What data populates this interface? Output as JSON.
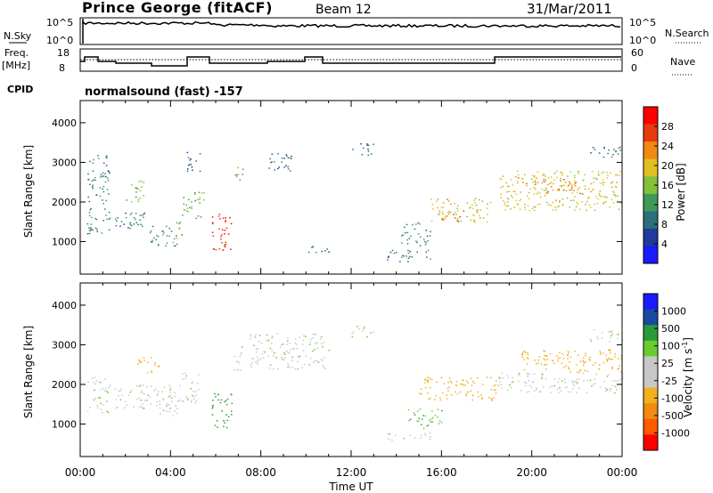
{
  "header": {
    "station": "Prince George (fitACF)",
    "beam": "Beam 12",
    "date": "31/Mar/2011"
  },
  "top_panels": {
    "nsky_label": "N.Sky",
    "nsky_ticks": [
      "10^5",
      "10^0"
    ],
    "nsearch_label": "N.Search",
    "nsearch_ticks": [
      "10^5",
      "10^0"
    ],
    "freq_label": "Freq.",
    "freq_unit": "[MHz]",
    "freq_ticks": [
      "18",
      "8"
    ],
    "nave_label": "Nave",
    "nave_ticks": [
      "60",
      "0"
    ],
    "cpid_label": "CPID",
    "cpid_text": "normalsound (fast) -157"
  },
  "colors": {
    "power_scale": [
      "#1a1aff",
      "#1e3a9a",
      "#2a6f7a",
      "#3f9a5a",
      "#86c03a",
      "#e0c020",
      "#f08a10",
      "#e83a10",
      "#ff0000"
    ],
    "velocity_scale": [
      "#ff0000",
      "#ff5a00",
      "#f08a10",
      "#f0b020",
      "#c8c8c8",
      "#c8c8c8",
      "#6acc30",
      "#2a9a3a",
      "#1a4aa0",
      "#1a1aff"
    ]
  },
  "chart_data": [
    {
      "type": "heatmap",
      "title": "",
      "quantity": "Power",
      "ylabel": "Slant Range [km]",
      "xlabel": "",
      "x_range": [
        "00:00",
        "24:00"
      ],
      "ylim": [
        180,
        4560
      ],
      "y_ticks": [
        "1000",
        "2000",
        "3000",
        "4000"
      ],
      "colorbar_label": "Power [dB]",
      "colorbar_ticks": [
        "4",
        "8",
        "12",
        "16",
        "20",
        "24",
        "28"
      ],
      "colorbar_range": [
        0,
        32
      ],
      "regions": [
        {
          "t0": 0.3,
          "t1": 1.3,
          "r0": 1200,
          "r1": 3200,
          "v": 10
        },
        {
          "t0": 1.5,
          "t1": 3.0,
          "r0": 1300,
          "r1": 1800,
          "v": 9
        },
        {
          "t0": 2.0,
          "t1": 2.8,
          "r0": 2000,
          "r1": 2600,
          "v": 14
        },
        {
          "t0": 3.0,
          "t1": 4.5,
          "r0": 900,
          "r1": 1500,
          "v": 12
        },
        {
          "t0": 4.5,
          "t1": 5.5,
          "r0": 1600,
          "r1": 2300,
          "v": 14
        },
        {
          "t0": 4.7,
          "t1": 5.3,
          "r0": 2700,
          "r1": 3300,
          "v": 8
        },
        {
          "t0": 5.8,
          "t1": 6.7,
          "r0": 800,
          "r1": 1800,
          "v": 28
        },
        {
          "t0": 6.8,
          "t1": 7.2,
          "r0": 2400,
          "r1": 2900,
          "v": 14
        },
        {
          "t0": 8.3,
          "t1": 9.5,
          "r0": 2800,
          "r1": 3300,
          "v": 8
        },
        {
          "t0": 10.0,
          "t1": 11.0,
          "r0": 700,
          "r1": 900,
          "v": 8
        },
        {
          "t0": 12.0,
          "t1": 13.0,
          "r0": 3200,
          "r1": 3500,
          "v": 8
        },
        {
          "t0": 13.5,
          "t1": 15.5,
          "r0": 500,
          "r1": 800,
          "v": 9
        },
        {
          "t0": 14.2,
          "t1": 15.5,
          "r0": 900,
          "r1": 1500,
          "v": 10
        },
        {
          "t0": 15.5,
          "t1": 18.2,
          "r0": 1500,
          "r1": 2100,
          "v": 19
        },
        {
          "t0": 15.8,
          "t1": 17.0,
          "r0": 1500,
          "r1": 1800,
          "v": 24
        },
        {
          "t0": 18.5,
          "t1": 24.0,
          "r0": 1800,
          "r1": 2800,
          "v": 19
        },
        {
          "t0": 20.0,
          "t1": 23.0,
          "r0": 2200,
          "r1": 2600,
          "v": 23
        },
        {
          "t0": 22.5,
          "t1": 24.0,
          "r0": 3100,
          "r1": 3400,
          "v": 9
        }
      ]
    },
    {
      "type": "heatmap",
      "title": "",
      "quantity": "Velocity",
      "ylabel": "Slant Range [km]",
      "xlabel": "Time UT",
      "x_range": [
        "00:00",
        "24:00"
      ],
      "x_ticks": [
        "00:00",
        "04:00",
        "08:00",
        "12:00",
        "16:00",
        "20:00",
        "00:00"
      ],
      "ylim": [
        180,
        4560
      ],
      "y_ticks": [
        "1000",
        "2000",
        "3000",
        "4000"
      ],
      "colorbar_label": "Velocity [m s",
      "colorbar_label_sup": "-1",
      "colorbar_label_end": "]",
      "colorbar_ticks": [
        "1000",
        "500",
        "100",
        "25",
        "-25",
        "-100",
        "-500",
        "-1000"
      ],
      "regions": [
        {
          "t0": 0.3,
          "t1": 1.3,
          "r0": 1300,
          "r1": 2200,
          "v": 0
        },
        {
          "t0": 1.5,
          "t1": 4.5,
          "r0": 1400,
          "r1": 2000,
          "v": 0
        },
        {
          "t0": 2.5,
          "t1": 3.5,
          "r0": 2300,
          "r1": 2700,
          "v": -150
        },
        {
          "t0": 3.5,
          "t1": 4.3,
          "r0": 1200,
          "r1": 1600,
          "v": 0
        },
        {
          "t0": 4.5,
          "t1": 5.3,
          "r0": 1500,
          "r1": 2300,
          "v": 0
        },
        {
          "t0": 5.8,
          "t1": 6.7,
          "r0": 900,
          "r1": 1800,
          "v": 300
        },
        {
          "t0": 6.8,
          "t1": 7.2,
          "r0": 2300,
          "r1": 3000,
          "v": 0
        },
        {
          "t0": 7.5,
          "t1": 11.0,
          "r0": 2400,
          "r1": 3300,
          "v": 0
        },
        {
          "t0": 12.0,
          "t1": 13.0,
          "r0": 3200,
          "r1": 3500,
          "v": 0
        },
        {
          "t0": 13.5,
          "t1": 15.5,
          "r0": 600,
          "r1": 800,
          "v": 0
        },
        {
          "t0": 14.5,
          "t1": 16.0,
          "r0": 900,
          "r1": 1400,
          "v": 80
        },
        {
          "t0": 15.0,
          "t1": 18.5,
          "r0": 1600,
          "r1": 2200,
          "v": -150
        },
        {
          "t0": 18.5,
          "t1": 24.0,
          "r0": 1800,
          "r1": 2300,
          "v": 0
        },
        {
          "t0": 19.5,
          "t1": 24.0,
          "r0": 2300,
          "r1": 2900,
          "v": -300
        },
        {
          "t0": 22.5,
          "t1": 24.0,
          "r0": 3100,
          "r1": 3400,
          "v": 0
        }
      ]
    }
  ]
}
